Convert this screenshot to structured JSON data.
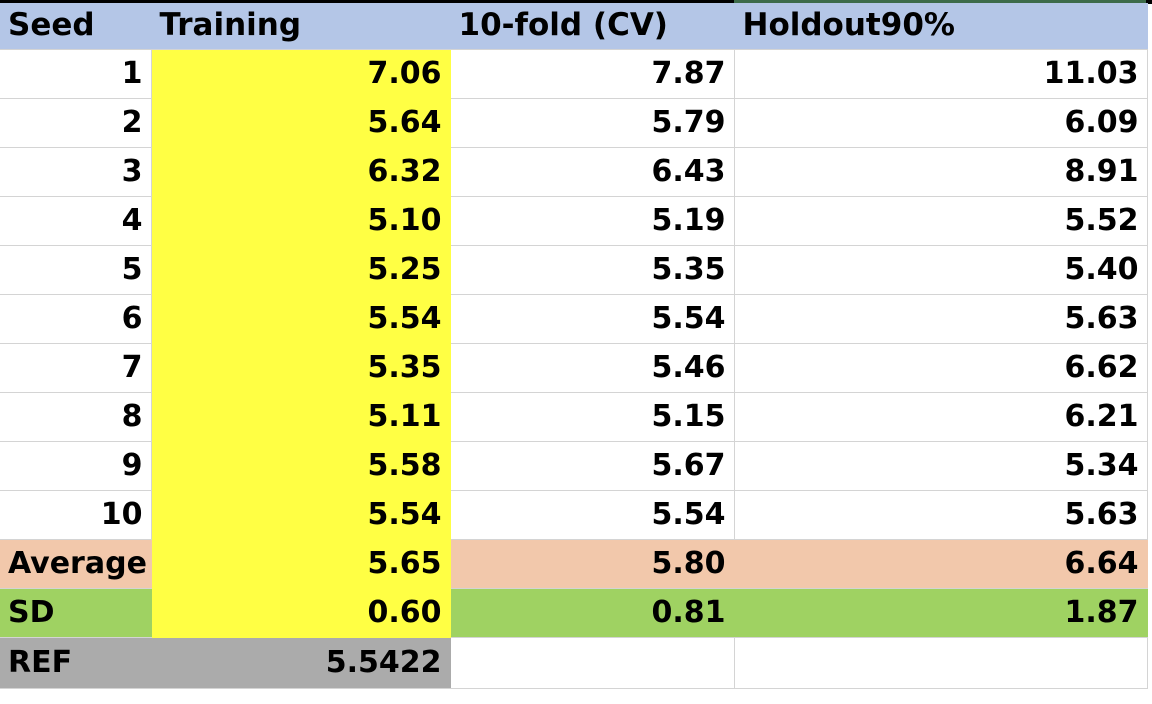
{
  "headers": [
    "Seed",
    "Training",
    "10-fold (CV)",
    "Holdout90%"
  ],
  "rows": [
    {
      "seed": "1",
      "training": "7.06",
      "cv": "7.87",
      "holdout": "11.03"
    },
    {
      "seed": "2",
      "training": "5.64",
      "cv": "5.79",
      "holdout": "6.09"
    },
    {
      "seed": "3",
      "training": "6.32",
      "cv": "6.43",
      "holdout": "8.91"
    },
    {
      "seed": "4",
      "training": "5.10",
      "cv": "5.19",
      "holdout": "5.52"
    },
    {
      "seed": "5",
      "training": "5.25",
      "cv": "5.35",
      "holdout": "5.40"
    },
    {
      "seed": "6",
      "training": "5.54",
      "cv": "5.54",
      "holdout": "5.63"
    },
    {
      "seed": "7",
      "training": "5.35",
      "cv": "5.46",
      "holdout": "6.62"
    },
    {
      "seed": "8",
      "training": "5.11",
      "cv": "5.15",
      "holdout": "6.21"
    },
    {
      "seed": "9",
      "training": "5.58",
      "cv": "5.67",
      "holdout": "5.34"
    },
    {
      "seed": "10",
      "training": "5.54",
      "cv": "5.54",
      "holdout": "5.63"
    }
  ],
  "average": {
    "label": "Average",
    "training": "5.65",
    "cv": "5.80",
    "holdout": "6.64"
  },
  "sd": {
    "label": "SD",
    "training": "0.60",
    "cv": "0.81",
    "holdout": "1.87"
  },
  "ref": {
    "label": "REF",
    "training": "5.5422",
    "cv": "",
    "holdout": ""
  },
  "colors": {
    "header": "#b4c6e7",
    "training_highlight": "#ffff44",
    "average_row": "#f2c8ab",
    "sd_row": "#9fd262",
    "ref_row": "#ababab"
  }
}
